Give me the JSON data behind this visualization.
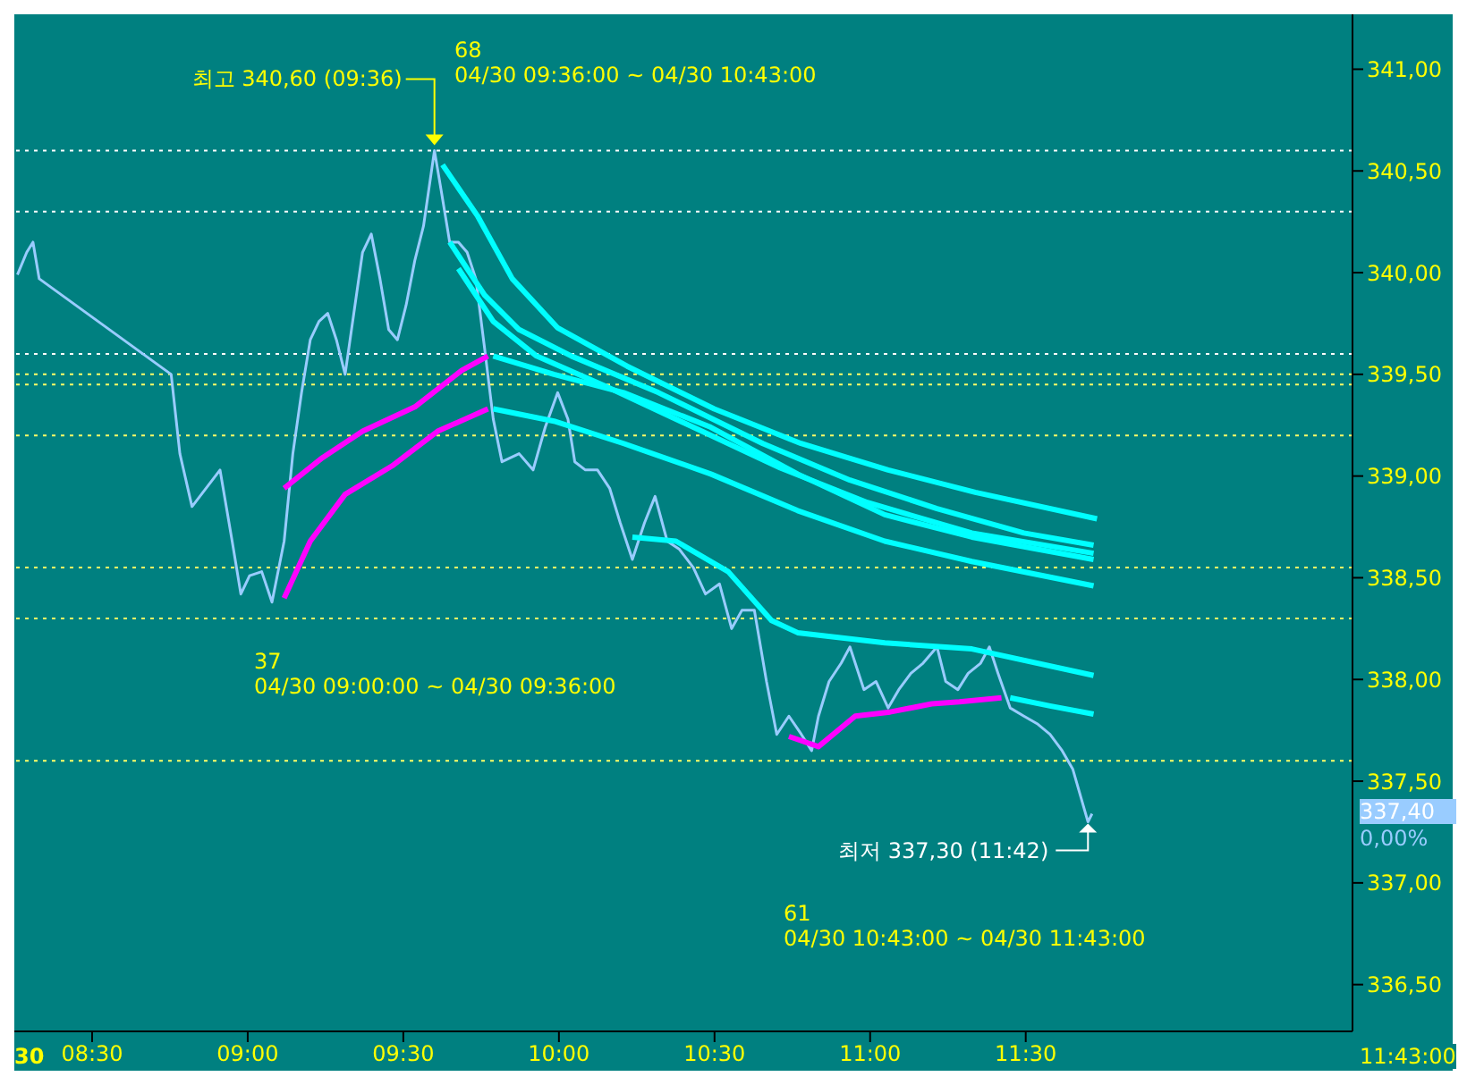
{
  "chart_data": {
    "type": "line",
    "xlim": [
      8.25,
      12.55
    ],
    "ylim": [
      336.27,
      341.27
    ],
    "xticks": [
      {
        "value": 8.5,
        "label": "08:30"
      },
      {
        "value": 9,
        "label": "09:00"
      },
      {
        "value": 9.5,
        "label": "09:30"
      },
      {
        "value": 10,
        "label": "10:00"
      },
      {
        "value": 10.5,
        "label": "10:30"
      },
      {
        "value": 11,
        "label": "11:00"
      },
      {
        "value": 11.5,
        "label": "11:30"
      }
    ],
    "yticks": [
      {
        "value": 336.5,
        "label": "336,50"
      },
      {
        "value": 337,
        "label": "337,00"
      },
      {
        "value": 337.5,
        "label": "337,50"
      },
      {
        "value": 338,
        "label": "338,00"
      },
      {
        "value": 338.5,
        "label": "338,50"
      },
      {
        "value": 339,
        "label": "339,00"
      },
      {
        "value": 339.5,
        "label": "339,50"
      },
      {
        "value": 340,
        "label": "340,00"
      },
      {
        "value": 340.5,
        "label": "340,50"
      },
      {
        "value": 341,
        "label": "341,00"
      }
    ],
    "marker": "none",
    "line_style": "solid",
    "series": [
      {
        "color": "#99ccff",
        "x": [
          8.26,
          8.29,
          8.31,
          8.33,
          8.754,
          8.782,
          8.821,
          8.866,
          8.911,
          8.95,
          8.978,
          9.006,
          9.045,
          9.078,
          9.117,
          9.145,
          9.173,
          9.201,
          9.229,
          9.257,
          9.285,
          9.313,
          9.341,
          9.369,
          9.397,
          9.425,
          9.453,
          9.481,
          9.509,
          9.537,
          9.565,
          9.6,
          9.621,
          9.649,
          9.677,
          9.705,
          9.733,
          9.761,
          9.789,
          9.817,
          9.872,
          9.917,
          9.956,
          9.996,
          10.029,
          10.051,
          10.085,
          10.124,
          10.163,
          10.197,
          10.236,
          10.275,
          10.309,
          10.348,
          10.387,
          10.432,
          10.471,
          10.516,
          10.555,
          10.588,
          10.628,
          10.667,
          10.7,
          10.739,
          10.779,
          10.812,
          10.834,
          10.868,
          10.907,
          10.935,
          10.98,
          11.019,
          11.058,
          11.092,
          11.131,
          11.17,
          11.215,
          11.243,
          11.282,
          11.315,
          11.355,
          11.383,
          11.411,
          11.45,
          11.494,
          11.539,
          11.578,
          11.617,
          11.651,
          11.7,
          11.713
        ],
        "values": [
          339.99,
          340.1,
          340.15,
          339.97,
          339.5,
          339.11,
          338.85,
          338.94,
          339.03,
          338.68,
          338.42,
          338.51,
          338.53,
          338.38,
          338.68,
          339.11,
          339.41,
          339.67,
          339.76,
          339.8,
          339.67,
          339.5,
          339.8,
          340.1,
          340.19,
          339.97,
          339.72,
          339.67,
          339.84,
          340.06,
          340.23,
          340.6,
          340.41,
          340.15,
          340.15,
          340.1,
          339.97,
          339.63,
          339.28,
          339.07,
          339.11,
          339.03,
          339.24,
          339.41,
          339.28,
          339.07,
          339.03,
          339.03,
          338.94,
          338.77,
          338.59,
          338.77,
          338.9,
          338.68,
          338.64,
          338.55,
          338.42,
          338.47,
          338.25,
          338.34,
          338.34,
          337.99,
          337.73,
          337.82,
          337.73,
          337.65,
          337.82,
          337.99,
          338.08,
          338.16,
          337.95,
          337.99,
          337.86,
          337.95,
          338.03,
          338.08,
          338.16,
          337.99,
          337.95,
          338.03,
          338.08,
          338.16,
          338.03,
          337.86,
          337.82,
          337.78,
          337.73,
          337.65,
          337.56,
          337.3,
          337.34
        ]
      },
      {
        "color": "#00ffff",
        "x": [
          9.626,
          9.738,
          9.85,
          9.995,
          10.219,
          10.499,
          10.778,
          11.058,
          11.338,
          11.729
        ],
        "values": [
          340.53,
          340.28,
          339.97,
          339.73,
          339.54,
          339.33,
          339.16,
          339.03,
          338.92,
          338.79
        ]
      },
      {
        "color": "#00ffff",
        "x": [
          9.649,
          9.761,
          9.872,
          10.04,
          10.32,
          10.655,
          10.935,
          11.215,
          11.494,
          11.718
        ],
        "values": [
          340.15,
          339.89,
          339.72,
          339.59,
          339.41,
          339.16,
          338.98,
          338.84,
          338.72,
          338.66
        ]
      },
      {
        "color": "#00ffff",
        "x": [
          9.677,
          9.789,
          9.928,
          10.152,
          10.432,
          10.711,
          10.991,
          11.327,
          11.718
        ],
        "values": [
          340.02,
          339.76,
          339.59,
          339.44,
          339.24,
          339.04,
          338.87,
          338.72,
          338.62
        ]
      },
      {
        "color": "#00ffff",
        "x": [
          9.789,
          9.984,
          10.208,
          10.488,
          10.767,
          11.047,
          11.327,
          11.718
        ],
        "values": [
          339.59,
          339.5,
          339.41,
          339.24,
          339.01,
          338.81,
          338.7,
          338.59
        ]
      },
      {
        "color": "#00ffff",
        "x": [
          9.789,
          9.984,
          10.208,
          10.488,
          10.767,
          11.047,
          11.327,
          11.718
        ],
        "values": [
          339.33,
          339.27,
          339.16,
          339.01,
          338.83,
          338.68,
          338.58,
          338.46
        ]
      },
      {
        "color": "#00ffff",
        "x": [
          10.236,
          10.376,
          10.544,
          10.683,
          10.767,
          11.047,
          11.327,
          11.718
        ],
        "values": [
          338.7,
          338.68,
          338.53,
          338.29,
          338.23,
          338.18,
          338.15,
          338.02
        ]
      },
      {
        "color": "#00ffff",
        "x": [
          11.45,
          11.578,
          11.718
        ],
        "values": [
          337.91,
          337.87,
          337.83
        ]
      },
      {
        "color": "#ff00ff",
        "x": [
          10.739,
          10.834,
          10.952,
          11.064,
          11.198,
          11.287,
          11.422
        ],
        "values": [
          337.72,
          337.67,
          337.82,
          337.84,
          337.88,
          337.89,
          337.91
        ]
      },
      {
        "color": "#ff00ff",
        "x": [
          9.117,
          9.24,
          9.369,
          9.537,
          9.688,
          9.772
        ],
        "values": [
          338.94,
          339.09,
          339.22,
          339.34,
          339.52,
          339.59
        ]
      },
      {
        "color": "#ff00ff",
        "x": [
          9.117,
          9.201,
          9.313,
          9.464,
          9.61,
          9.772
        ],
        "values": [
          338.4,
          338.68,
          338.91,
          339.05,
          339.22,
          339.33
        ]
      }
    ],
    "ref_lines": [
      {
        "axis": "y",
        "value": 340.6,
        "color": "#ffffff",
        "line_style": "dotted"
      },
      {
        "axis": "y",
        "value": 340.3,
        "color": "#ffffff",
        "line_style": "dotted"
      },
      {
        "axis": "y",
        "value": 339.6,
        "color": "#ffffff",
        "line_style": "dotted"
      },
      {
        "axis": "y",
        "value": 339.5,
        "color": "#ffff66",
        "line_style": "dotted"
      },
      {
        "axis": "y",
        "value": 339.45,
        "color": "#ffff66",
        "line_style": "dotted"
      },
      {
        "axis": "y",
        "value": 339.2,
        "color": "#ffff66",
        "line_style": "dotted"
      },
      {
        "axis": "y",
        "value": 338.55,
        "color": "#ffff66",
        "line_style": "dotted"
      },
      {
        "axis": "y",
        "value": 338.3,
        "color": "#ffff66",
        "line_style": "dotted"
      },
      {
        "axis": "y",
        "value": 337.6,
        "color": "#ffff66",
        "line_style": "dotted"
      }
    ],
    "annotations": [
      {
        "text": "최고 340,60 (09:36)",
        "x": 9.6,
        "y": 340.6
      },
      {
        "text": "최저 337,30 (11:42)",
        "x": 11.7,
        "y": 337.3
      },
      "68",
      "04/30 09:36:00 ~ 04/30 10:43:00",
      "37",
      "04/30 09:00:00 ~ 04/30 09:36:00",
      "61",
      "04/30 10:43:00 ~ 04/30 11:43:00",
      "337,40",
      "0,00%",
      "11:43:00",
      "30"
    ]
  }
}
